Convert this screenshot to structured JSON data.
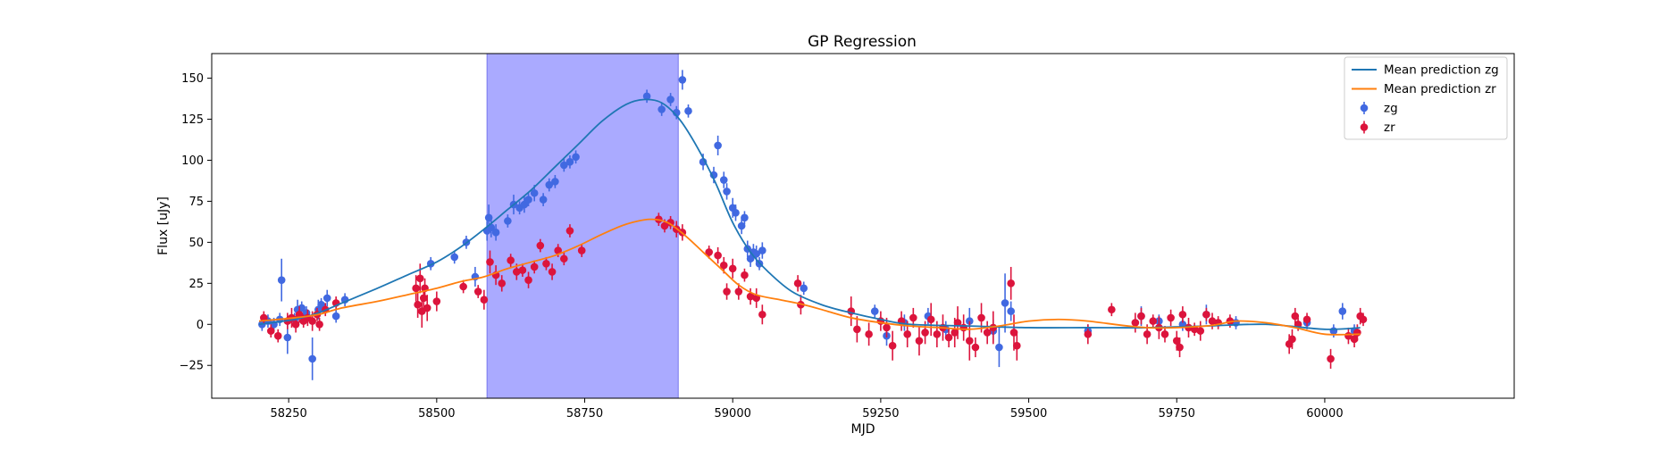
{
  "chart_data": {
    "type": "scatter",
    "title": "GP Regression",
    "xlabel": "MJD",
    "ylabel": "Flux [uJy]",
    "xlim": [
      58120,
      60320
    ],
    "ylim": [
      -45,
      165
    ],
    "xticks": [
      58250,
      58500,
      58750,
      59000,
      59250,
      59500,
      59750,
      60000
    ],
    "yticks": [
      -25,
      0,
      25,
      50,
      75,
      100,
      125,
      150
    ],
    "grid": false,
    "legend_position": "top-right",
    "shaded_region": {
      "x0": 58585,
      "x1": 58908,
      "color": "#aaaaff"
    },
    "colors": {
      "zg_line": "#1f77b4",
      "zr_line": "#ff7f0e",
      "zg_points": "#4169e1",
      "zr_points": "#dc143c"
    },
    "legend": [
      {
        "label": "Mean prediction zg",
        "kind": "line",
        "color": "#1f77b4"
      },
      {
        "label": "Mean prediction zr",
        "kind": "line",
        "color": "#ff7f0e"
      },
      {
        "label": "zg",
        "kind": "errorbar",
        "color": "#4169e1"
      },
      {
        "label": "zr",
        "kind": "errorbar",
        "color": "#dc143c"
      }
    ],
    "lines": [
      {
        "name": "Mean prediction zg",
        "color": "#1f77b4",
        "x": [
          58200,
          58260,
          58300,
          58340,
          58400,
          58450,
          58500,
          58540,
          58580,
          58620,
          58660,
          58700,
          58740,
          58780,
          58820,
          58850,
          58880,
          58910,
          58940,
          58970,
          59000,
          59030,
          59060,
          59100,
          59150,
          59200,
          59250,
          59300,
          59400,
          59500,
          59600,
          59700,
          59800,
          59900,
          60000,
          60060
        ],
        "y": [
          0,
          3,
          7,
          13,
          22,
          30,
          38,
          47,
          58,
          70,
          82,
          96,
          110,
          124,
          134,
          137,
          135,
          125,
          108,
          87,
          62,
          44,
          32,
          20,
          12,
          7,
          3,
          0,
          -1,
          -2,
          -2,
          -2,
          -1,
          0,
          -3,
          -2
        ]
      },
      {
        "name": "Mean prediction zr",
        "color": "#ff7f0e",
        "x": [
          58200,
          58260,
          58300,
          58340,
          58400,
          58450,
          58500,
          58540,
          58580,
          58620,
          58660,
          58700,
          58740,
          58780,
          58820,
          58860,
          58890,
          58920,
          58950,
          58980,
          59010,
          59040,
          59080,
          59120,
          59160,
          59200,
          59250,
          59300,
          59350,
          59400,
          59450,
          59500,
          59550,
          59600,
          59700,
          59800,
          59850,
          59900,
          59950,
          60000,
          60060
        ],
        "y": [
          2,
          4,
          6,
          10,
          14,
          18,
          22,
          26,
          29,
          34,
          38,
          42,
          48,
          55,
          61,
          64,
          62,
          54,
          44,
          34,
          24,
          18,
          15,
          12,
          8,
          4,
          1,
          -1,
          -2,
          -3,
          -1,
          2,
          3,
          2,
          -2,
          -1,
          2,
          1,
          -2,
          -6,
          -6
        ]
      }
    ],
    "series": [
      {
        "name": "zg",
        "color": "#4169e1",
        "x": [
          58205,
          58215,
          58225,
          58235,
          58238,
          58248,
          58260,
          58265,
          58272,
          58280,
          58290,
          58300,
          58305,
          58315,
          58330,
          58345,
          58490,
          58530,
          58550,
          58565,
          58585,
          58588,
          58592,
          58600,
          58620,
          58630,
          58640,
          58648,
          58655,
          58665,
          58680,
          58690,
          58700,
          58715,
          58725,
          58735,
          58855,
          58880,
          58895,
          58905,
          58915,
          58925,
          58950,
          58968,
          58975,
          58985,
          58990,
          59000,
          59005,
          59015,
          59020,
          59025,
          59030,
          59035,
          59040,
          59045,
          59050,
          59120,
          59240,
          59260,
          59290,
          59330,
          59360,
          59400,
          59440,
          59450,
          59460,
          59470,
          59600,
          59690,
          59720,
          59760,
          59800,
          59850,
          59970,
          60015,
          60030,
          60050
        ],
        "y": [
          0,
          2,
          0,
          3,
          27,
          -8,
          3,
          9,
          10,
          7,
          -21,
          9,
          12,
          16,
          5,
          15,
          37,
          41,
          50,
          29,
          57,
          65,
          59,
          56,
          63,
          73,
          71,
          73,
          76,
          80,
          76,
          85,
          87,
          97,
          99,
          102,
          139,
          131,
          137,
          129,
          149,
          130,
          99,
          91,
          109,
          88,
          81,
          71,
          68,
          60,
          65,
          46,
          40,
          44,
          43,
          37,
          45,
          22,
          8,
          -7,
          1,
          5,
          -3,
          2,
          -4,
          -14,
          13,
          8,
          -4,
          5,
          2,
          0,
          6,
          1,
          1,
          -4,
          8,
          -4
        ],
        "err": [
          4,
          4,
          4,
          4,
          13,
          10,
          4,
          6,
          4,
          4,
          13,
          6,
          4,
          5,
          4,
          4,
          4,
          4,
          4,
          6,
          6,
          8,
          6,
          5,
          4,
          6,
          4,
          5,
          4,
          5,
          4,
          4,
          4,
          4,
          4,
          4,
          4,
          4,
          4,
          4,
          6,
          4,
          5,
          5,
          6,
          5,
          5,
          6,
          5,
          5,
          4,
          5,
          5,
          5,
          5,
          4,
          5,
          4,
          4,
          6,
          5,
          5,
          5,
          8,
          7,
          12,
          18,
          6,
          4,
          6,
          4,
          4,
          6,
          4,
          4,
          4,
          5,
          4
        ]
      },
      {
        "name": "zr",
        "color": "#dc143c",
        "x": [
          58208,
          58220,
          58232,
          58248,
          58255,
          58262,
          58268,
          58275,
          58282,
          58290,
          58298,
          58302,
          58312,
          58330,
          58465,
          58468,
          58472,
          58475,
          58478,
          58480,
          58484,
          58500,
          58545,
          58570,
          58580,
          58590,
          58600,
          58610,
          58625,
          58635,
          58645,
          58655,
          58665,
          58675,
          58685,
          58695,
          58705,
          58715,
          58725,
          58745,
          58875,
          58885,
          58895,
          58905,
          58915,
          58960,
          58975,
          58985,
          58990,
          59000,
          59010,
          59020,
          59030,
          59040,
          59050,
          59110,
          59115,
          59200,
          59210,
          59230,
          59250,
          59260,
          59270,
          59285,
          59295,
          59305,
          59315,
          59325,
          59335,
          59345,
          59355,
          59365,
          59375,
          59380,
          59390,
          59400,
          59410,
          59420,
          59430,
          59440,
          59470,
          59475,
          59480,
          59600,
          59640,
          59680,
          59690,
          59700,
          59710,
          59720,
          59730,
          59740,
          59750,
          59755,
          59760,
          59770,
          59780,
          59790,
          59800,
          59810,
          59820,
          59840,
          59940,
          59945,
          59950,
          59955,
          59970,
          60010,
          60040,
          60050,
          60055,
          60060,
          60065
        ],
        "y": [
          4,
          -4,
          -7,
          2,
          4,
          0,
          6,
          2,
          4,
          2,
          6,
          0,
          9,
          13,
          22,
          12,
          28,
          8,
          16,
          22,
          10,
          14,
          23,
          20,
          15,
          38,
          30,
          25,
          39,
          32,
          33,
          27,
          35,
          48,
          37,
          32,
          45,
          40,
          57,
          45,
          64,
          60,
          62,
          58,
          56,
          44,
          42,
          36,
          20,
          34,
          20,
          30,
          17,
          16,
          6,
          25,
          12,
          8,
          -3,
          -6,
          2,
          -2,
          -13,
          2,
          -6,
          4,
          -10,
          -5,
          3,
          -6,
          -2,
          -8,
          -5,
          1,
          -2,
          -10,
          -14,
          4,
          -5,
          -2,
          25,
          -5,
          -13,
          -6,
          9,
          1,
          5,
          -6,
          2,
          -2,
          -6,
          4,
          -10,
          -14,
          6,
          -2,
          -3,
          -4,
          6,
          2,
          1,
          2,
          -12,
          -9,
          5,
          0,
          3,
          -21,
          -7,
          -9,
          -5,
          5,
          3
        ],
        "err": [
          4,
          4,
          4,
          5,
          6,
          5,
          5,
          4,
          5,
          6,
          4,
          4,
          4,
          4,
          8,
          8,
          9,
          10,
          7,
          6,
          8,
          6,
          4,
          4,
          6,
          7,
          6,
          5,
          4,
          5,
          4,
          5,
          4,
          4,
          4,
          5,
          4,
          4,
          4,
          4,
          4,
          4,
          4,
          5,
          5,
          4,
          5,
          5,
          5,
          6,
          5,
          4,
          5,
          6,
          6,
          5,
          6,
          9,
          8,
          7,
          6,
          6,
          9,
          6,
          8,
          6,
          9,
          7,
          10,
          8,
          8,
          6,
          9,
          10,
          8,
          12,
          6,
          9,
          7,
          10,
          10,
          11,
          9,
          6,
          4,
          6,
          5,
          6,
          4,
          7,
          5,
          5,
          6,
          6,
          5,
          6,
          4,
          6,
          4,
          5,
          4,
          4,
          6,
          6,
          5,
          4,
          4,
          6,
          5,
          5,
          5,
          5,
          4
        ]
      }
    ]
  }
}
